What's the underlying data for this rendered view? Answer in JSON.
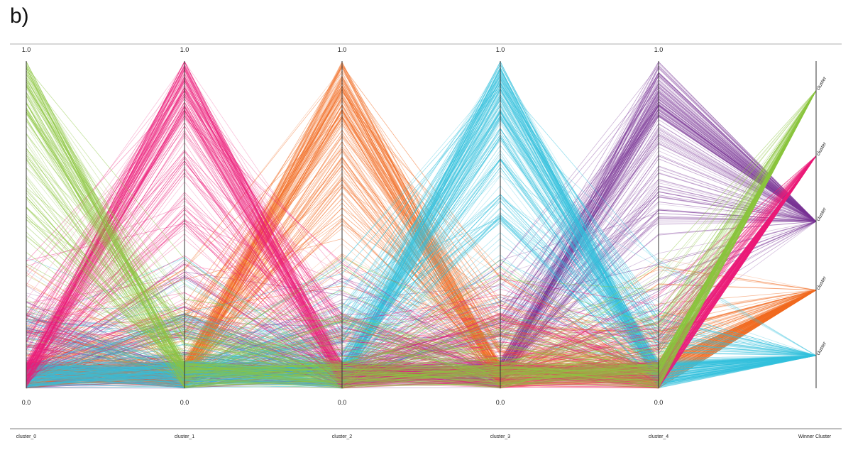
{
  "panel_label": "b)",
  "chart_data": {
    "type": "parallel-coordinates",
    "title": "",
    "axes": [
      "cluster_0",
      "cluster_1",
      "cluster_2",
      "cluster_3",
      "cluster_4",
      "Winner Cluster"
    ],
    "axis_range": [
      0.0,
      1.0
    ],
    "tick_top": "1.0",
    "tick_bottom": "0.0",
    "categorical_axis": "Winner Cluster",
    "category_labels": [
      "cluster",
      "cluster",
      "cluster",
      "cluster",
      "cluster"
    ],
    "category_positions": [
      0.91,
      0.71,
      0.51,
      0.3,
      0.1
    ],
    "series": [
      {
        "name": "cluster_0",
        "color": "#8cc63f",
        "peak_axis": 0,
        "winner_position": 0.91,
        "lines": 140
      },
      {
        "name": "cluster_1",
        "color": "#ec1c79",
        "peak_axis": 1,
        "winner_position": 0.71,
        "lines": 170
      },
      {
        "name": "cluster_2",
        "color": "#f26b21",
        "peak_axis": 2,
        "winner_position": 0.3,
        "lines": 170
      },
      {
        "name": "cluster_3",
        "color": "#33c1dd",
        "peak_axis": 3,
        "winner_position": 0.1,
        "lines": 190
      },
      {
        "name": "cluster_4",
        "color": "#7a3596",
        "peak_axis": 4,
        "winner_position": 0.51,
        "lines": 170
      }
    ]
  }
}
